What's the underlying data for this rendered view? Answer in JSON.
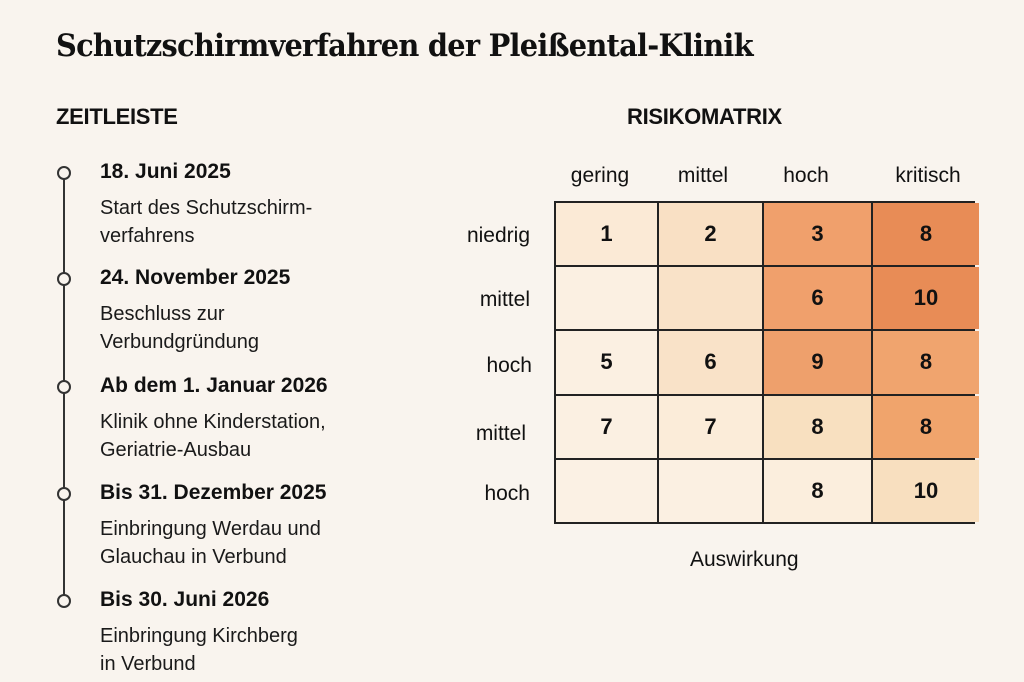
{
  "title": "Schutzschirmverfahren der Pleißental-Klinik",
  "timeline": {
    "heading": "ZEITLEISTE",
    "items": [
      {
        "date": "18. Juni 2025",
        "lines": [
          "Start des Schutzschirm-",
          "verfahrens"
        ]
      },
      {
        "date": "24. November 2025",
        "lines": [
          "Beschluss zur",
          "Verbundgründung"
        ]
      },
      {
        "date": "Ab dem 1. Januar 2026",
        "lines": [
          "Klinik ohne Kinderstation,",
          "Geriatrie-Ausbau"
        ]
      },
      {
        "date": "Bis 31. Dezember 2025",
        "lines": [
          "Einbringung Werdau und",
          "Glauchau in Verbund"
        ]
      },
      {
        "date": "Bis 30. Juni 2026",
        "lines": [
          "Einbringung Kirchberg",
          "in Verbund"
        ]
      }
    ]
  },
  "chart_data": {
    "type": "heatmap",
    "title": "RISIKOMATRIX",
    "xlabel": "Auswirkung",
    "ylabel": "",
    "columns": [
      "gering",
      "mittel",
      "hoch",
      "kritisch"
    ],
    "rows": [
      "niedrig",
      "mittel",
      "hoch",
      "mittel",
      "hoch"
    ],
    "values": [
      [
        1,
        2,
        3,
        8
      ],
      [
        null,
        null,
        6,
        10
      ],
      [
        5,
        6,
        9,
        8
      ],
      [
        7,
        7,
        8,
        8
      ],
      [
        null,
        null,
        8,
        10
      ]
    ],
    "colors": [
      [
        "#fbead6",
        "#f9e0c4",
        "#f0a06c",
        "#e88c56"
      ],
      [
        "#fbf0e2",
        "#f9e2c8",
        "#f0a06c",
        "#e88c56"
      ],
      [
        "#fbf0e2",
        "#f9e2c8",
        "#eea06c",
        "#f0a46e"
      ],
      [
        "#fbf0e2",
        "#fbecd9",
        "#f8e0c0",
        "#f0a46c"
      ],
      [
        "#fbf1e4",
        "#fbf0e2",
        "#fbeedd",
        "#f8dfbf"
      ]
    ]
  }
}
